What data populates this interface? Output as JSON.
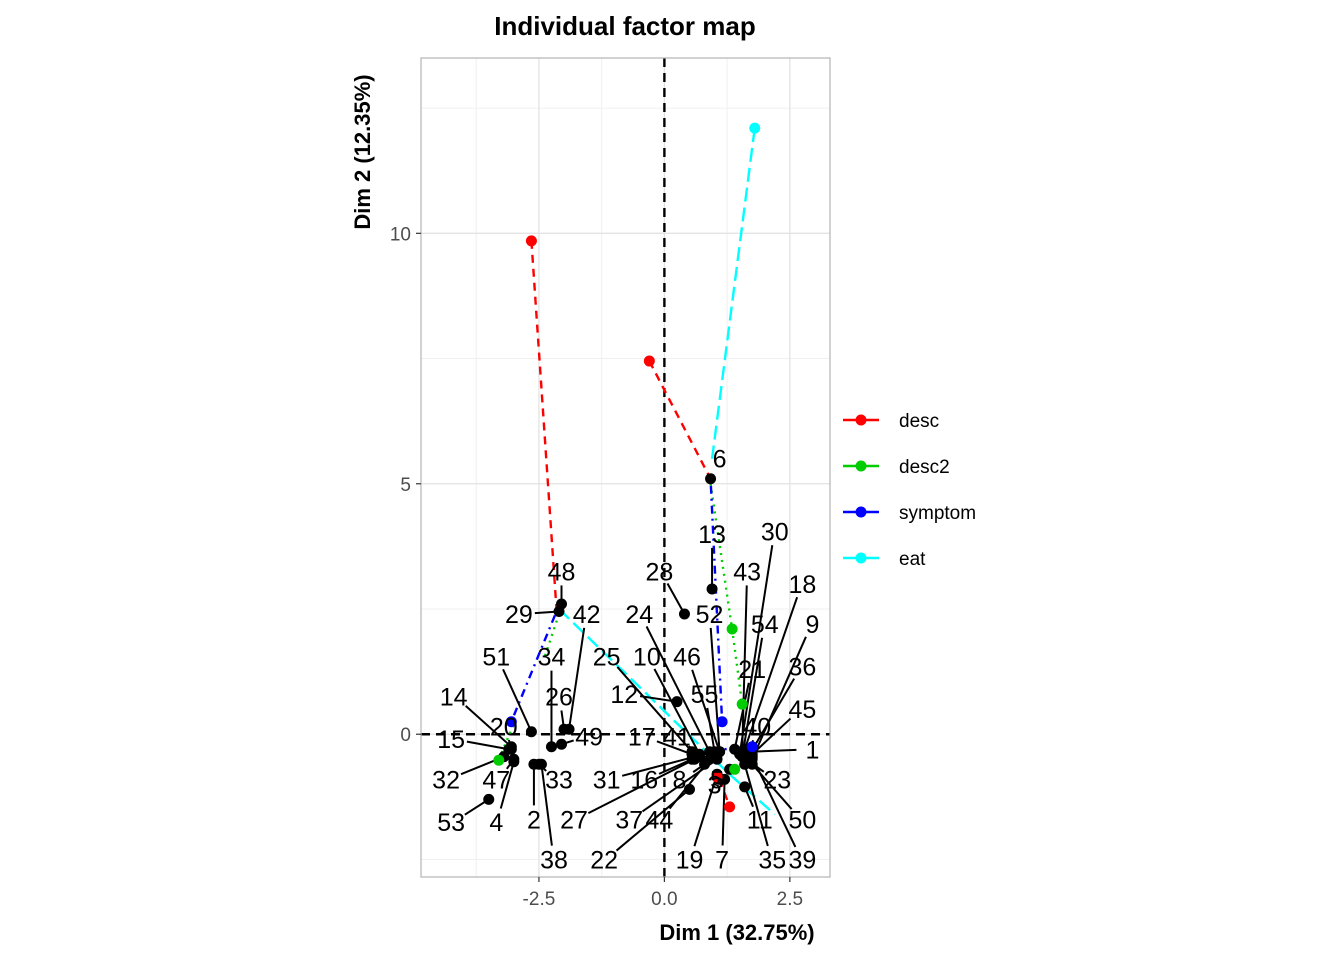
{
  "chart_data": {
    "type": "scatter",
    "title": "Individual factor map",
    "xlabel": "Dim 1 (32.75%)",
    "ylabel": "Dim 2 (12.35%)",
    "xlim": [
      -4.85,
      3.3
    ],
    "ylim": [
      -2.85,
      13.5
    ],
    "xticks": [
      {
        "v": -2.5,
        "label": "-2.5"
      },
      {
        "v": 0,
        "label": "0.0"
      },
      {
        "v": 2.5,
        "label": "2.5"
      }
    ],
    "yticks": [
      {
        "v": 0,
        "label": "0"
      },
      {
        "v": 5,
        "label": "5"
      },
      {
        "v": 10,
        "label": "10"
      }
    ],
    "grid": true,
    "legend_position": "right",
    "legend": [
      {
        "name": "desc",
        "color": "#ff0000",
        "dash": "dashed"
      },
      {
        "name": "desc2",
        "color": "#00cd00",
        "dash": "dotted"
      },
      {
        "name": "symptom",
        "color": "#0000ff",
        "dash": "dotdash"
      },
      {
        "name": "eat",
        "color": "#00ffff",
        "dash": "longdash"
      }
    ],
    "points": [
      {
        "label": "1",
        "x": 1.7,
        "y": -0.35,
        "lx": 2.95,
        "ly": -0.3
      },
      {
        "label": "2",
        "x": -2.6,
        "y": -0.6,
        "lx": -2.6,
        "ly": -1.7
      },
      {
        "label": "3",
        "x": 1.1,
        "y": -0.9,
        "lx": 1.0,
        "ly": -1.0
      },
      {
        "label": "4",
        "x": -3.0,
        "y": -0.55,
        "lx": -3.35,
        "ly": -1.75
      },
      {
        "label": "5",
        "x": 1.3,
        "y": -0.7,
        "lx": 1.05,
        "ly": -0.9
      },
      {
        "label": "6",
        "x": 0.92,
        "y": 5.1,
        "lx": 1.1,
        "ly": 5.5
      },
      {
        "label": "7",
        "x": 1.2,
        "y": -0.9,
        "lx": 1.15,
        "ly": -2.5
      },
      {
        "label": "8",
        "x": 0.8,
        "y": -0.6,
        "lx": 0.3,
        "ly": -0.9
      },
      {
        "label": "9",
        "x": 1.75,
        "y": -0.5,
        "lx": 2.95,
        "ly": 2.2
      },
      {
        "label": "10",
        "x": 0.7,
        "y": -0.4,
        "lx": -0.35,
        "ly": 1.55
      },
      {
        "label": "11",
        "x": 1.6,
        "y": -1.05,
        "lx": 1.9,
        "ly": -1.7
      },
      {
        "label": "12",
        "x": 0.25,
        "y": 0.65,
        "lx": -0.8,
        "ly": 0.8
      },
      {
        "label": "13",
        "x": 0.95,
        "y": 2.9,
        "lx": 0.95,
        "ly": 4.0
      },
      {
        "label": "14",
        "x": -3.05,
        "y": -0.25,
        "lx": -4.2,
        "ly": 0.75
      },
      {
        "label": "15",
        "x": -3.1,
        "y": -0.3,
        "lx": -4.25,
        "ly": -0.1
      },
      {
        "label": "16",
        "x": 0.55,
        "y": -0.5,
        "lx": -0.4,
        "ly": -0.9
      },
      {
        "label": "17",
        "x": 0.55,
        "y": -0.4,
        "lx": -0.45,
        "ly": -0.05
      },
      {
        "label": "18",
        "x": 1.6,
        "y": -0.3,
        "lx": 2.75,
        "ly": 3.0
      },
      {
        "label": "19",
        "x": 1.05,
        "y": -0.8,
        "lx": 0.5,
        "ly": -2.5
      },
      {
        "label": "20",
        "x": -3.05,
        "y": -0.3,
        "lx": -3.2,
        "ly": 0.15
      },
      {
        "label": "21",
        "x": 1.4,
        "y": -0.3,
        "lx": 1.75,
        "ly": 1.3
      },
      {
        "label": "22",
        "x": 0.5,
        "y": -1.1,
        "lx": -1.2,
        "ly": -2.5
      },
      {
        "label": "23",
        "x": 1.7,
        "y": -0.55,
        "lx": 2.25,
        "ly": -0.9
      },
      {
        "label": "24",
        "x": 0.9,
        "y": -0.35,
        "lx": -0.5,
        "ly": 2.4
      },
      {
        "label": "25",
        "x": 0.55,
        "y": -0.35,
        "lx": -1.15,
        "ly": 1.55
      },
      {
        "label": "26",
        "x": -2.0,
        "y": 0.1,
        "lx": -2.1,
        "ly": 0.75
      },
      {
        "label": "27",
        "x": 0.6,
        "y": -0.5,
        "lx": -1.8,
        "ly": -1.7
      },
      {
        "label": "28",
        "x": 0.4,
        "y": 2.4,
        "lx": -0.1,
        "ly": 3.25
      },
      {
        "label": "29",
        "x": -2.1,
        "y": 2.45,
        "lx": -2.9,
        "ly": 2.4
      },
      {
        "label": "30",
        "x": 1.5,
        "y": -0.4,
        "lx": 2.2,
        "ly": 4.05
      },
      {
        "label": "31",
        "x": 0.6,
        "y": -0.45,
        "lx": -1.15,
        "ly": -0.9
      },
      {
        "label": "32",
        "x": -3.2,
        "y": -0.45,
        "lx": -4.35,
        "ly": -0.9
      },
      {
        "label": "33",
        "x": -2.5,
        "y": -0.6,
        "lx": -2.1,
        "ly": -0.9
      },
      {
        "label": "34",
        "x": -2.25,
        "y": -0.25,
        "lx": -2.25,
        "ly": 1.55
      },
      {
        "label": "35",
        "x": 1.6,
        "y": -0.6,
        "lx": 2.15,
        "ly": -2.5
      },
      {
        "label": "36",
        "x": 1.7,
        "y": -0.4,
        "lx": 2.75,
        "ly": 1.35
      },
      {
        "label": "37",
        "x": 1.05,
        "y": -0.5,
        "lx": -0.7,
        "ly": -1.7
      },
      {
        "label": "38",
        "x": -2.45,
        "y": -0.6,
        "lx": -2.2,
        "ly": -2.5
      },
      {
        "label": "39",
        "x": 1.75,
        "y": -0.45,
        "lx": 2.75,
        "ly": -2.5
      },
      {
        "label": "40",
        "x": 1.7,
        "y": -0.4,
        "lx": 1.85,
        "ly": 0.15
      },
      {
        "label": "41",
        "x": 0.7,
        "y": -0.45,
        "lx": 0.25,
        "ly": -0.05
      },
      {
        "label": "42",
        "x": -1.9,
        "y": 0.1,
        "lx": -1.55,
        "ly": 2.4
      },
      {
        "label": "43",
        "x": 1.55,
        "y": -0.35,
        "lx": 1.65,
        "ly": 3.25
      },
      {
        "label": "44",
        "x": 0.9,
        "y": -0.5,
        "lx": -0.1,
        "ly": -1.7
      },
      {
        "label": "45",
        "x": 1.75,
        "y": -0.4,
        "lx": 2.75,
        "ly": 0.5
      },
      {
        "label": "46",
        "x": 1.1,
        "y": -0.35,
        "lx": 0.45,
        "ly": 1.55
      },
      {
        "label": "47",
        "x": -3.0,
        "y": -0.5,
        "lx": -3.35,
        "ly": -0.9
      },
      {
        "label": "48",
        "x": -2.05,
        "y": 2.6,
        "lx": -2.05,
        "ly": 3.25
      },
      {
        "label": "49",
        "x": -2.05,
        "y": -0.2,
        "lx": -1.5,
        "ly": -0.05
      },
      {
        "label": "50",
        "x": 1.75,
        "y": -0.6,
        "lx": 2.75,
        "ly": -1.7
      },
      {
        "label": "51",
        "x": -2.65,
        "y": 0.05,
        "lx": -3.35,
        "ly": 1.55
      },
      {
        "label": "52",
        "x": 1.1,
        "y": -0.35,
        "lx": 0.9,
        "ly": 2.4
      },
      {
        "label": "53",
        "x": -3.5,
        "y": -1.3,
        "lx": -4.25,
        "ly": -1.75
      },
      {
        "label": "54",
        "x": 1.55,
        "y": -0.45,
        "lx": 2.0,
        "ly": 2.2
      },
      {
        "label": "55",
        "x": 1.0,
        "y": -0.35,
        "lx": 0.8,
        "ly": 0.8
      }
    ],
    "supplementary": [
      {
        "series": "desc",
        "dash": "dashed",
        "color": "#ff0000",
        "segments": [
          {
            "x1": -2.65,
            "y1": 9.85,
            "x2": -2.15,
            "y2": 2.5
          },
          {
            "x1": -0.3,
            "y1": 7.45,
            "x2": 0.92,
            "y2": 5.1
          },
          {
            "x1": 1.1,
            "y1": -0.9,
            "x2": 1.3,
            "y2": -1.45
          }
        ],
        "points": [
          {
            "x": -2.65,
            "y": 9.85
          },
          {
            "x": -0.3,
            "y": 7.45
          },
          {
            "x": 1.3,
            "y": -1.45
          },
          {
            "x": 1.05,
            "y": -0.85
          }
        ]
      },
      {
        "series": "desc2",
        "dash": "dotted",
        "color": "#00cd00",
        "segments": [
          {
            "x1": 0.92,
            "y1": 5.0,
            "x2": 1.35,
            "y2": 2.1
          },
          {
            "x1": 1.35,
            "y1": 2.1,
            "x2": 1.55,
            "y2": 0.6
          },
          {
            "x1": -3.3,
            "y1": -0.5,
            "x2": -3.0,
            "y2": 0.2
          },
          {
            "x1": -2.1,
            "y1": 2.4,
            "x2": -2.4,
            "y2": 1.5
          }
        ],
        "points": [
          {
            "x": -3.3,
            "y": -0.52
          },
          {
            "x": 1.35,
            "y": 2.1
          },
          {
            "x": 1.55,
            "y": 0.6
          },
          {
            "x": 1.4,
            "y": -0.7
          }
        ]
      },
      {
        "series": "symptom",
        "dash": "dotdash",
        "color": "#0000ff",
        "segments": [
          {
            "x1": -3.05,
            "y1": 0.25,
            "x2": -2.15,
            "y2": 2.45
          },
          {
            "x1": 0.92,
            "y1": 5.1,
            "x2": 1.15,
            "y2": 0.25
          },
          {
            "x1": 1.2,
            "y1": -0.3,
            "x2": 1.8,
            "y2": -0.2
          }
        ],
        "points": [
          {
            "x": -3.05,
            "y": 0.25
          },
          {
            "x": 1.15,
            "y": 0.25
          },
          {
            "x": 1.75,
            "y": -0.25
          }
        ]
      },
      {
        "series": "eat",
        "dash": "longdash",
        "color": "#00ffff",
        "segments": [
          {
            "x1": 1.8,
            "y1": 12.1,
            "x2": 0.95,
            "y2": 5.5
          },
          {
            "x1": -2.1,
            "y1": 2.5,
            "x2": 1.3,
            "y2": -0.8
          },
          {
            "x1": 1.3,
            "y1": -0.8,
            "x2": 2.2,
            "y2": -1.6
          }
        ],
        "points": [
          {
            "x": 1.8,
            "y": 12.1
          }
        ]
      }
    ],
    "reference_lines": {
      "x": 0,
      "y": 0
    }
  }
}
